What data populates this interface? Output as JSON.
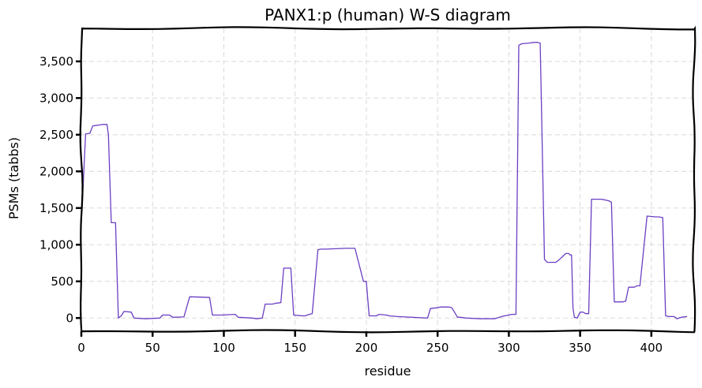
{
  "chart_data": {
    "type": "line",
    "title": "PANX1:p (human) W-S diagram",
    "xlabel": "residue",
    "ylabel": "PSMs (tabbs)",
    "xlim": [
      0,
      430
    ],
    "ylim": [
      -180,
      3950
    ],
    "xticks": [
      0,
      50,
      100,
      150,
      200,
      250,
      300,
      350,
      400
    ],
    "xtick_labels": [
      "0",
      "50",
      "100",
      "150",
      "200",
      "250",
      "300",
      "350",
      "400"
    ],
    "yticks": [
      0,
      500,
      1000,
      1500,
      2000,
      2500,
      3000,
      3500
    ],
    "ytick_labels": [
      "0",
      "500",
      "1,000",
      "1,500",
      "2,000",
      "2,500",
      "3,000",
      "3,500"
    ],
    "grid": true,
    "series": [
      {
        "color": "#6a3fc4",
        "x": [
          1,
          3,
          6,
          8,
          15,
          18,
          19,
          21,
          24,
          26,
          28,
          30,
          35,
          37,
          45,
          55,
          57,
          62,
          64,
          72,
          74,
          76,
          90,
          92,
          98,
          108,
          110,
          120,
          123,
          127,
          129,
          134,
          136,
          140,
          142,
          147,
          149,
          155,
          157,
          160,
          162,
          166,
          168,
          172,
          185,
          192,
          194,
          198,
          200,
          202,
          207,
          209,
          214,
          216,
          222,
          243,
          245,
          250,
          252,
          258,
          260,
          264,
          266,
          270,
          280,
          290,
          295,
          297,
          300,
          302,
          305,
          307,
          309,
          314,
          318,
          320,
          322,
          325,
          327,
          333,
          335,
          340,
          342,
          343,
          344,
          345,
          346,
          348,
          350,
          352,
          354,
          356,
          358,
          365,
          370,
          372,
          374,
          376,
          380,
          382,
          384,
          388,
          390,
          392,
          397,
          403,
          405,
          408,
          410,
          412,
          416,
          418,
          421,
          425
        ],
        "y": [
          1700,
          2510,
          2520,
          2620,
          2640,
          2640,
          2500,
          1300,
          1300,
          0,
          30,
          90,
          80,
          0,
          -10,
          0,
          40,
          40,
          10,
          15,
          150,
          290,
          280,
          40,
          40,
          50,
          10,
          0,
          -10,
          0,
          190,
          190,
          200,
          210,
          680,
          680,
          40,
          30,
          30,
          50,
          60,
          930,
          940,
          940,
          950,
          950,
          800,
          500,
          500,
          30,
          30,
          50,
          40,
          30,
          20,
          0,
          130,
          140,
          150,
          150,
          140,
          10,
          10,
          0,
          -10,
          -10,
          20,
          30,
          40,
          50,
          50,
          3720,
          3740,
          3750,
          3760,
          3760,
          3750,
          800,
          760,
          760,
          790,
          880,
          880,
          860,
          860,
          140,
          10,
          0,
          80,
          80,
          60,
          60,
          1620,
          1620,
          1600,
          1580,
          220,
          220,
          220,
          230,
          420,
          420,
          440,
          440,
          1390,
          1380,
          1380,
          1370,
          30,
          20,
          20,
          -10,
          10,
          20
        ]
      }
    ]
  }
}
